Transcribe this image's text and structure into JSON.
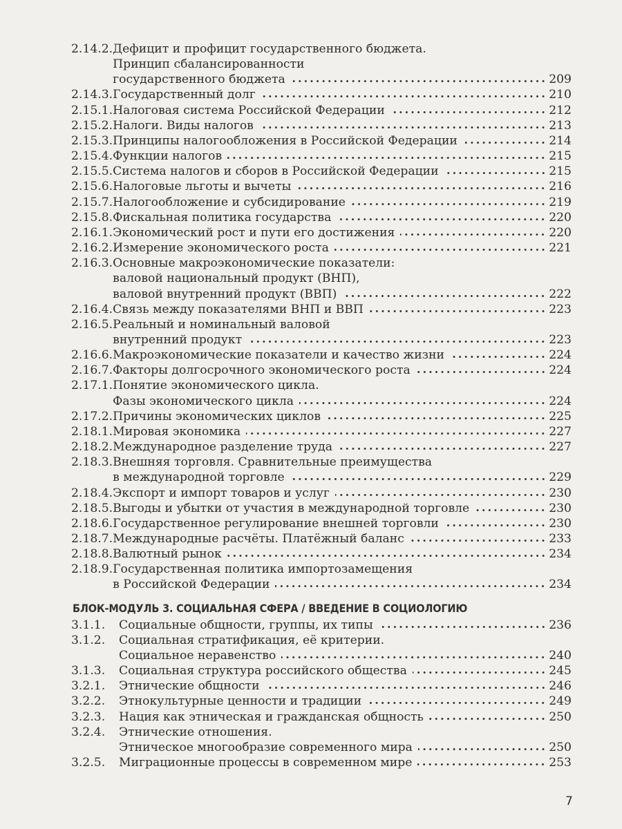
{
  "entries_block2": [
    {
      "num": "2.14.2.",
      "lines": [
        "Дефицит и профицит государственного бюджета.",
        "Принцип сбалансированности",
        "государственного бюджета"
      ],
      "page": "209"
    },
    {
      "num": "2.14.3.",
      "lines": [
        "Государственный долг"
      ],
      "page": "210"
    },
    {
      "num": "2.15.1.",
      "lines": [
        "Налоговая система Российской Федерации"
      ],
      "page": "212"
    },
    {
      "num": "2.15.2.",
      "lines": [
        "Налоги. Виды налогов"
      ],
      "page": "213"
    },
    {
      "num": "2.15.3.",
      "lines": [
        "Принципы налогообложения в Российской Федерации"
      ],
      "page": "214"
    },
    {
      "num": "2.15.4.",
      "lines": [
        "Функции налогов"
      ],
      "page": "215"
    },
    {
      "num": "2.15.5.",
      "lines": [
        "Система налогов и сборов в Российской Федерации"
      ],
      "page": "215"
    },
    {
      "num": "2.15.6.",
      "lines": [
        "Налоговые льготы и вычеты"
      ],
      "page": "216"
    },
    {
      "num": "2.15.7.",
      "lines": [
        "Налогообложение и субсидирование"
      ],
      "page": "219"
    },
    {
      "num": "2.15.8.",
      "lines": [
        "Фискальная политика государства"
      ],
      "page": "220"
    },
    {
      "num": "2.16.1.",
      "lines": [
        "Экономический рост и пути его достижения"
      ],
      "page": "220"
    },
    {
      "num": "2.16.2.",
      "lines": [
        "Измерение экономического роста"
      ],
      "page": "221"
    },
    {
      "num": "2.16.3.",
      "lines": [
        "Основные макроэкономические показатели:",
        "валовой национальный продукт (ВНП),",
        "валовой внутренний продукт (ВВП)"
      ],
      "page": "222"
    },
    {
      "num": "2.16.4.",
      "lines": [
        "Связь между показателями ВНП и ВВП"
      ],
      "page": "223"
    },
    {
      "num": "2.16.5.",
      "lines": [
        "Реальный и номинальный валовой",
        "внутренний продукт"
      ],
      "page": "223"
    },
    {
      "num": "2.16.6.",
      "lines": [
        "Макроэкономические показатели и качество жизни"
      ],
      "page": "224"
    },
    {
      "num": "2.16.7.",
      "lines": [
        "Факторы долгосрочного экономического роста"
      ],
      "page": "224"
    },
    {
      "num": "2.17.1.",
      "lines": [
        "Понятие экономического цикла.",
        "Фазы экономического цикла"
      ],
      "page": "224"
    },
    {
      "num": "2.17.2.",
      "lines": [
        "Причины экономических циклов"
      ],
      "page": "225"
    },
    {
      "num": "2.18.1.",
      "lines": [
        "Мировая экономика"
      ],
      "page": "227"
    },
    {
      "num": "2.18.2.",
      "lines": [
        "Международное разделение труда"
      ],
      "page": "227"
    },
    {
      "num": "2.18.3.",
      "lines": [
        "Внешняя торговля. Сравнительные преимущества",
        "в международной торговле"
      ],
      "page": "229"
    },
    {
      "num": "2.18.4.",
      "lines": [
        "Экспорт и импорт товаров и услуг"
      ],
      "page": "230"
    },
    {
      "num": "2.18.5.",
      "lines": [
        "Выгоды и убытки от участия в международной торговле"
      ],
      "page": "230"
    },
    {
      "num": "2.18.6.",
      "lines": [
        "Государственное регулирование внешней торговли"
      ],
      "page": "230"
    },
    {
      "num": "2.18.7.",
      "lines": [
        "Международные расчёты. Платёжный баланс"
      ],
      "page": "233"
    },
    {
      "num": "2.18.8.",
      "lines": [
        "Валютный рынок"
      ],
      "page": "234"
    },
    {
      "num": "2.18.9.",
      "lines": [
        "Государственная политика импортозамещения",
        "в Российской Федерации"
      ],
      "page": "234"
    }
  ],
  "section_heading": "БЛОК-МОДУЛЬ 3. СОЦИАЛЬНАЯ СФЕРА / ВВЕДЕНИЕ В СОЦИОЛОГИЮ",
  "entries_block3": [
    {
      "num": "3.1.1.",
      "lines": [
        "Социальные общности, группы, их типы"
      ],
      "page": "236"
    },
    {
      "num": "3.1.2.",
      "lines": [
        "Социальная стратификация, её критерии.",
        "Социальное неравенство"
      ],
      "page": "240"
    },
    {
      "num": "3.1.3.",
      "lines": [
        "Социальная структура российского общества"
      ],
      "page": "245"
    },
    {
      "num": "3.2.1.",
      "lines": [
        "Этнические общности"
      ],
      "page": "246"
    },
    {
      "num": "3.2.2.",
      "lines": [
        "Этнокультурные ценности и традиции"
      ],
      "page": "249"
    },
    {
      "num": "3.2.3.",
      "lines": [
        "Нация как этническая и гражданская общность"
      ],
      "page": "250"
    },
    {
      "num": "3.2.4.",
      "lines": [
        "Этнические отношения.",
        "Этническое многообразие современного мира"
      ],
      "page": "250"
    },
    {
      "num": "3.2.5.",
      "lines": [
        "Миграционные процессы в современном мире"
      ],
      "page": "253"
    }
  ],
  "page_number": "7"
}
